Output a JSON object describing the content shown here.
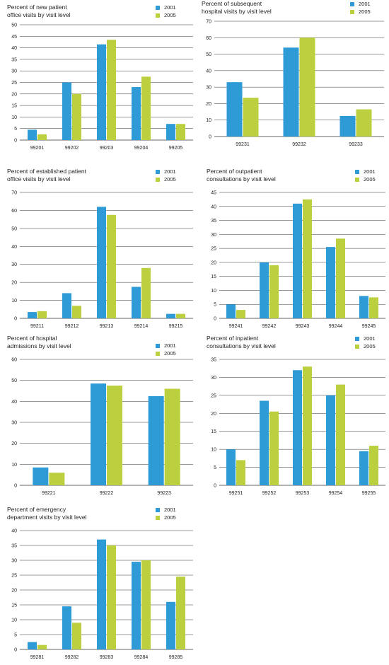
{
  "colors": {
    "s2001": "#2e9bd6",
    "s2005": "#bccf3e",
    "grid": "#333333"
  },
  "legend": {
    "label_2001": "2001",
    "label_2005": "2005"
  },
  "chart_data": [
    {
      "type": "bar",
      "title": "Percent of new patient office visits by visit level",
      "title_lines": [
        "Percent of new patient",
        "office visits by visit level"
      ],
      "categories": [
        "99201",
        "99202",
        "99203",
        "99204",
        "99205"
      ],
      "ylim": [
        0,
        50
      ],
      "yticks": [
        0,
        5,
        10,
        15,
        20,
        25,
        30,
        35,
        40,
        45,
        50
      ],
      "grid": true,
      "legend_position": "top-right",
      "series": [
        {
          "name": "2001",
          "values": [
            4.5,
            25,
            41.5,
            23,
            7
          ]
        },
        {
          "name": "2005",
          "values": [
            2.5,
            20,
            43.5,
            27.5,
            7
          ]
        }
      ]
    },
    {
      "type": "bar",
      "title": "Percent of subsequent hospital visits by visit level",
      "title_lines": [
        "Percent of subsequent",
        "hospital visits by visit level"
      ],
      "categories": [
        "99231",
        "99232",
        "99233"
      ],
      "ylim": [
        0,
        70
      ],
      "yticks": [
        0,
        10,
        20,
        30,
        40,
        50,
        60,
        70
      ],
      "grid": true,
      "legend_position": "top-right",
      "series": [
        {
          "name": "2001",
          "values": [
            33,
            54,
            12.5
          ]
        },
        {
          "name": "2005",
          "values": [
            23.5,
            60,
            16.5
          ]
        }
      ]
    },
    {
      "type": "bar",
      "title": "Percent of established patient office visits by visit level",
      "title_lines": [
        "Percent of established patient",
        "office visits by visit level"
      ],
      "categories": [
        "99211",
        "99212",
        "99213",
        "99214",
        "99215"
      ],
      "ylim": [
        0,
        70
      ],
      "yticks": [
        0,
        10,
        20,
        30,
        40,
        50,
        60,
        70
      ],
      "grid": true,
      "legend_position": "top-right",
      "series": [
        {
          "name": "2001",
          "values": [
            3.5,
            14,
            62,
            17.5,
            2.5
          ]
        },
        {
          "name": "2005",
          "values": [
            4,
            7,
            57.5,
            28,
            2.5
          ]
        }
      ]
    },
    {
      "type": "bar",
      "title": "Percent of outpatient consultations by visit level",
      "title_lines": [
        "Percent of outpatient",
        "consultations by visit level"
      ],
      "categories": [
        "99241",
        "99242",
        "99243",
        "99244",
        "99245"
      ],
      "ylim": [
        0,
        45
      ],
      "yticks": [
        0,
        5,
        10,
        15,
        20,
        25,
        30,
        35,
        40,
        45
      ],
      "grid": true,
      "legend_position": "top-right",
      "series": [
        {
          "name": "2001",
          "values": [
            5,
            20,
            41,
            25.5,
            8
          ]
        },
        {
          "name": "2005",
          "values": [
            3,
            19,
            42.5,
            28.5,
            7.5
          ]
        }
      ]
    },
    {
      "type": "bar",
      "title": "Percent of hospital admissions by visit level",
      "title_lines": [
        "Percent of hospital",
        "admissions by visit level"
      ],
      "categories": [
        "99221",
        "99222",
        "99223"
      ],
      "ylim": [
        0,
        60
      ],
      "yticks": [
        0,
        10,
        20,
        30,
        40,
        50,
        60
      ],
      "grid": true,
      "legend_position": "top-right",
      "series": [
        {
          "name": "2001",
          "values": [
            8.5,
            48.5,
            42.5
          ]
        },
        {
          "name": "2005",
          "values": [
            6,
            47.5,
            46
          ]
        }
      ]
    },
    {
      "type": "bar",
      "title": "Percent of inpatient consultations by visit level",
      "title_lines": [
        "Percent of inpatient",
        "consultations by visit level"
      ],
      "categories": [
        "99251",
        "99252",
        "99253",
        "99254",
        "99255"
      ],
      "ylim": [
        0,
        35
      ],
      "yticks": [
        0,
        5,
        10,
        15,
        20,
        25,
        30,
        35
      ],
      "grid": true,
      "legend_position": "top-right",
      "series": [
        {
          "name": "2001",
          "values": [
            10,
            23.5,
            32,
            25,
            9.5
          ]
        },
        {
          "name": "2005",
          "values": [
            7,
            20.5,
            33,
            28,
            11
          ]
        }
      ]
    },
    {
      "type": "bar",
      "title": "Percent of emergency department visits by visit level",
      "title_lines": [
        "Percent of emergency",
        "department visits by visit level"
      ],
      "categories": [
        "99281",
        "99282",
        "99283",
        "99284",
        "99285"
      ],
      "ylim": [
        0,
        40
      ],
      "yticks": [
        0,
        5,
        10,
        15,
        20,
        25,
        30,
        35,
        40
      ],
      "grid": true,
      "legend_position": "top-right",
      "series": [
        {
          "name": "2001",
          "values": [
            2.5,
            14.5,
            37,
            29.5,
            16
          ]
        },
        {
          "name": "2005",
          "values": [
            1.5,
            9,
            35,
            30,
            24.5
          ]
        }
      ]
    }
  ]
}
